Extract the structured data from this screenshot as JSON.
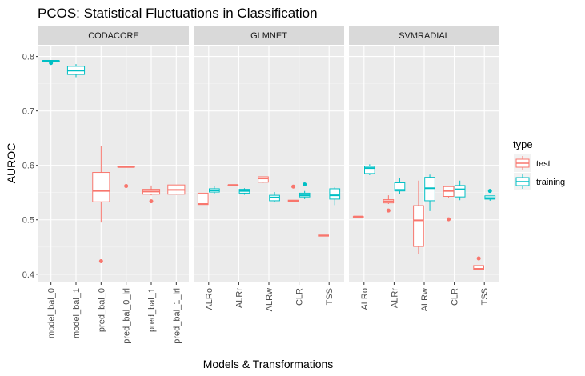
{
  "chart_data": {
    "type": "boxplot",
    "title": "PCOS: Statistical Fluctuations in Classification",
    "xlabel": "Models & Transformations",
    "ylabel": "AUROC",
    "ylim": [
      0.385,
      0.82
    ],
    "yticks": [
      0.4,
      0.5,
      0.6,
      0.7,
      0.8
    ],
    "grid": true,
    "legend": {
      "title": "type",
      "position": "right",
      "entries": [
        {
          "name": "test",
          "color": "#F8766D"
        },
        {
          "name": "training",
          "color": "#00BFC4"
        }
      ]
    },
    "panels": [
      {
        "name": "CODACORE",
        "categories": [
          "model_bal_0",
          "model_bal_1",
          "pred_bal_0",
          "pred_bal_0_lrl",
          "pred_bal_1",
          "pred_bal_1_lrl"
        ],
        "boxes": [
          {
            "category": "model_bal_0",
            "type": "training",
            "whisker_low": 0.791,
            "q1": 0.791,
            "median": 0.792,
            "q3": 0.792,
            "whisker_high": 0.792,
            "outliers": [
              0.788
            ]
          },
          {
            "category": "model_bal_1",
            "type": "training",
            "whisker_low": 0.762,
            "q1": 0.767,
            "median": 0.774,
            "q3": 0.782,
            "whisker_high": 0.786,
            "outliers": []
          },
          {
            "category": "pred_bal_0",
            "type": "test",
            "whisker_low": 0.495,
            "q1": 0.533,
            "median": 0.553,
            "q3": 0.587,
            "whisker_high": 0.636,
            "outliers": [
              0.424
            ]
          },
          {
            "category": "pred_bal_0_lrl",
            "type": "test",
            "whisker_low": 0.597,
            "q1": 0.597,
            "median": 0.597,
            "q3": 0.598,
            "whisker_high": 0.598,
            "outliers": [
              0.562
            ]
          },
          {
            "category": "pred_bal_1",
            "type": "test",
            "whisker_low": 0.545,
            "q1": 0.547,
            "median": 0.552,
            "q3": 0.556,
            "whisker_high": 0.563,
            "outliers": [
              0.534
            ]
          },
          {
            "category": "pred_bal_1_lrl",
            "type": "test",
            "whisker_low": 0.546,
            "q1": 0.547,
            "median": 0.555,
            "q3": 0.564,
            "whisker_high": 0.564,
            "outliers": []
          }
        ]
      },
      {
        "name": "GLMNET",
        "categories": [
          "ALRo",
          "ALRr",
          "ALRw",
          "CLR",
          "TSS"
        ],
        "boxes": [
          {
            "category": "ALRo",
            "type": "test",
            "whisker_low": 0.528,
            "q1": 0.528,
            "median": 0.529,
            "q3": 0.549,
            "whisker_high": 0.549,
            "outliers": []
          },
          {
            "category": "ALRo",
            "type": "training",
            "whisker_low": 0.548,
            "q1": 0.551,
            "median": 0.554,
            "q3": 0.557,
            "whisker_high": 0.562,
            "outliers": []
          },
          {
            "category": "ALRr",
            "type": "test",
            "whisker_low": 0.563,
            "q1": 0.563,
            "median": 0.564,
            "q3": 0.564,
            "whisker_high": 0.564,
            "outliers": []
          },
          {
            "category": "ALRr",
            "type": "training",
            "whisker_low": 0.546,
            "q1": 0.549,
            "median": 0.553,
            "q3": 0.556,
            "whisker_high": 0.558,
            "outliers": []
          },
          {
            "category": "ALRw",
            "type": "test",
            "whisker_low": 0.568,
            "q1": 0.569,
            "median": 0.576,
            "q3": 0.579,
            "whisker_high": 0.579,
            "outliers": []
          },
          {
            "category": "ALRw",
            "type": "training",
            "whisker_low": 0.532,
            "q1": 0.535,
            "median": 0.541,
            "q3": 0.545,
            "whisker_high": 0.551,
            "outliers": []
          },
          {
            "category": "CLR",
            "type": "test",
            "whisker_low": 0.534,
            "q1": 0.534,
            "median": 0.535,
            "q3": 0.536,
            "whisker_high": 0.536,
            "outliers": [
              0.561
            ]
          },
          {
            "category": "CLR",
            "type": "training",
            "whisker_low": 0.538,
            "q1": 0.542,
            "median": 0.545,
            "q3": 0.549,
            "whisker_high": 0.553,
            "outliers": [
              0.565
            ]
          },
          {
            "category": "TSS",
            "type": "test",
            "whisker_low": 0.47,
            "q1": 0.47,
            "median": 0.471,
            "q3": 0.472,
            "whisker_high": 0.472,
            "outliers": []
          },
          {
            "category": "TSS",
            "type": "training",
            "whisker_low": 0.527,
            "q1": 0.538,
            "median": 0.545,
            "q3": 0.557,
            "whisker_high": 0.56,
            "outliers": []
          }
        ]
      },
      {
        "name": "SVMRADIAL",
        "categories": [
          "ALRo",
          "ALRr",
          "ALRw",
          "CLR",
          "TSS"
        ],
        "boxes": [
          {
            "category": "ALRo",
            "type": "test",
            "whisker_low": 0.505,
            "q1": 0.505,
            "median": 0.506,
            "q3": 0.506,
            "whisker_high": 0.506,
            "outliers": []
          },
          {
            "category": "ALRo",
            "type": "training",
            "whisker_low": 0.582,
            "q1": 0.585,
            "median": 0.595,
            "q3": 0.598,
            "whisker_high": 0.602,
            "outliers": []
          },
          {
            "category": "ALRr",
            "type": "test",
            "whisker_low": 0.529,
            "q1": 0.531,
            "median": 0.534,
            "q3": 0.537,
            "whisker_high": 0.545,
            "outliers": [
              0.517
            ]
          },
          {
            "category": "ALRr",
            "type": "training",
            "whisker_low": 0.547,
            "q1": 0.553,
            "median": 0.555,
            "q3": 0.568,
            "whisker_high": 0.577,
            "outliers": []
          },
          {
            "category": "ALRw",
            "type": "test",
            "whisker_low": 0.437,
            "q1": 0.451,
            "median": 0.499,
            "q3": 0.526,
            "whisker_high": 0.572,
            "outliers": []
          },
          {
            "category": "ALRw",
            "type": "training",
            "whisker_low": 0.516,
            "q1": 0.535,
            "median": 0.558,
            "q3": 0.578,
            "whisker_high": 0.583,
            "outliers": []
          },
          {
            "category": "CLR",
            "type": "test",
            "whisker_low": 0.541,
            "q1": 0.543,
            "median": 0.553,
            "q3": 0.561,
            "whisker_high": 0.561,
            "outliers": [
              0.501
            ]
          },
          {
            "category": "CLR",
            "type": "training",
            "whisker_low": 0.536,
            "q1": 0.542,
            "median": 0.556,
            "q3": 0.563,
            "whisker_high": 0.572,
            "outliers": []
          },
          {
            "category": "TSS",
            "type": "test",
            "whisker_low": 0.408,
            "q1": 0.408,
            "median": 0.41,
            "q3": 0.416,
            "whisker_high": 0.416,
            "outliers": [
              0.429
            ]
          },
          {
            "category": "TSS",
            "type": "training",
            "whisker_low": 0.535,
            "q1": 0.538,
            "median": 0.54,
            "q3": 0.544,
            "whisker_high": 0.544,
            "outliers": [
              0.553
            ]
          }
        ]
      }
    ]
  }
}
